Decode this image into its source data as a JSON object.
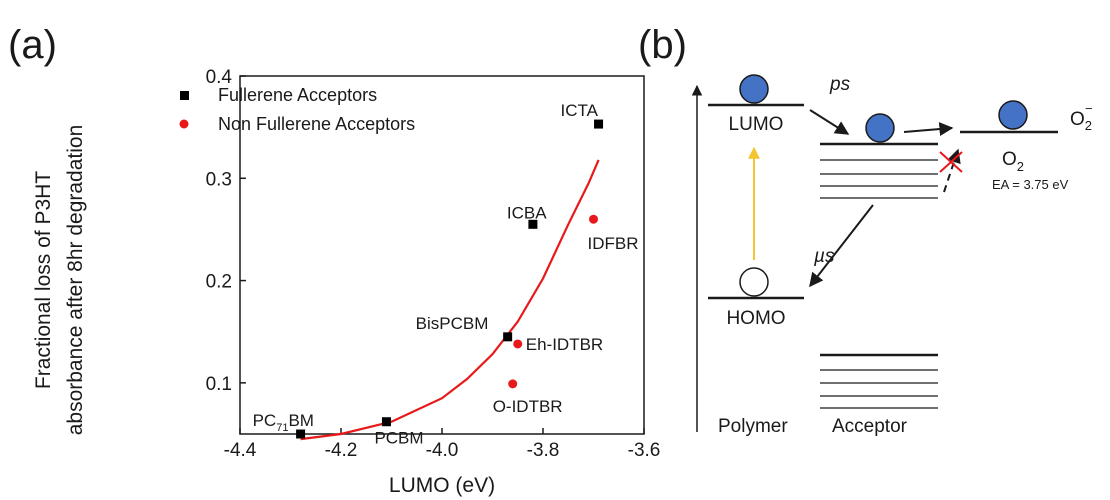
{
  "panels": {
    "a_label": "(a)",
    "b_label": "(b)"
  },
  "chart_data": {
    "type": "scatter",
    "xlabel": "LUMO (eV)",
    "ylabel_line1": "Fractional loss of P3HT",
    "ylabel_line2": "absorbance after 8hr degradation",
    "xlim": [
      -4.4,
      -3.6
    ],
    "ylim": [
      0.05,
      0.4
    ],
    "xticks": [
      -4.4,
      -4.2,
      -4.0,
      -3.8,
      -3.6
    ],
    "xtick_labels": [
      "-4.4",
      "-4.2",
      "-4.0",
      "-3.8",
      "-3.6"
    ],
    "yticks": [
      0.1,
      0.2,
      0.3,
      0.4
    ],
    "ytick_labels": [
      "0.1",
      "0.2",
      "0.3",
      "0.4"
    ],
    "legend_position": "top-left",
    "series": [
      {
        "name": "Fullerene Acceptors",
        "marker": "square",
        "color": "#000000",
        "points": [
          {
            "label_main": "PC",
            "label_sub": "71",
            "label_tail": "BM",
            "x": -4.28,
            "y": 0.05
          },
          {
            "label_main": "PCBM",
            "x": -4.11,
            "y": 0.062
          },
          {
            "label_main": "BisPCBM",
            "x": -3.87,
            "y": 0.145
          },
          {
            "label_main": "ICBA",
            "x": -3.82,
            "y": 0.255
          },
          {
            "label_main": "ICTA",
            "x": -3.69,
            "y": 0.353
          }
        ]
      },
      {
        "name": "Non Fullerene Acceptors",
        "marker": "circle",
        "color": "#e8191a",
        "points": [
          {
            "label_main": "O-IDTBR",
            "x": -3.86,
            "y": 0.099
          },
          {
            "label_main": "Eh-IDTBR",
            "x": -3.85,
            "y": 0.138
          },
          {
            "label_main": "IDFBR",
            "x": -3.7,
            "y": 0.26
          }
        ]
      }
    ],
    "fit_line": {
      "color": "#e8191a",
      "x": [
        -4.28,
        -4.2,
        -4.1,
        -4.0,
        -3.95,
        -3.9,
        -3.85,
        -3.8,
        -3.75,
        -3.71,
        -3.69
      ],
      "y": [
        0.045,
        0.05,
        0.062,
        0.085,
        0.104,
        0.128,
        0.16,
        0.202,
        0.255,
        0.295,
        0.318
      ]
    }
  },
  "diagram": {
    "lumo": "LUMO",
    "homo": "HOMO",
    "ps": "ps",
    "mus": "µs",
    "o2_main": "O",
    "o2_sub": "2",
    "o2minus_main": "O",
    "o2minus_sub": "2",
    "o2minus_sup": "−",
    "ea": "EA = 3.75 eV",
    "polymer": "Polymer",
    "acceptor": "Acceptor",
    "electron_color": "#4472c4",
    "photon_color": "#f4c531",
    "cross_color": "#e8191a"
  }
}
